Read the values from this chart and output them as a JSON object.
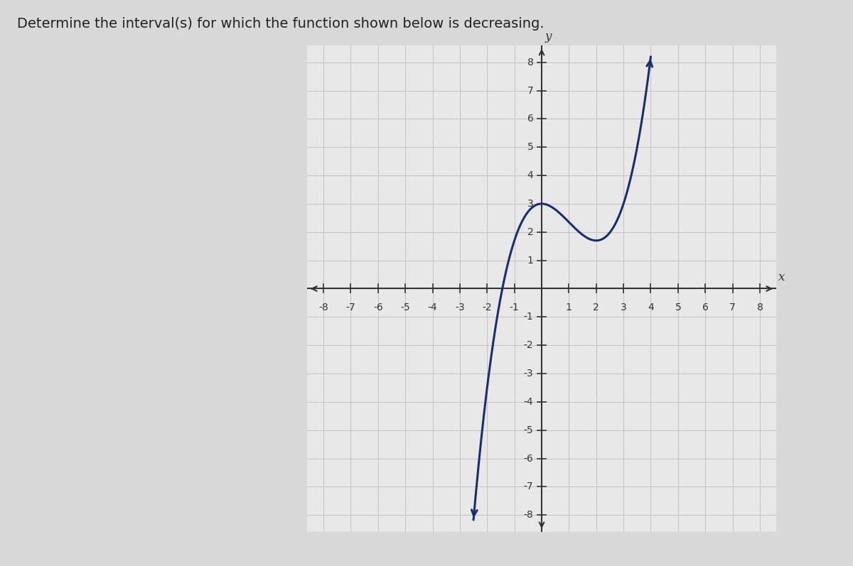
{
  "title": "Determine the interval(s) for which the function shown below is decreasing.",
  "title_fontsize": 14,
  "title_color": "#222222",
  "xlim": [
    -8.6,
    8.6
  ],
  "ylim": [
    -8.6,
    8.6
  ],
  "xticks": [
    -8,
    -7,
    -6,
    -5,
    -4,
    -3,
    -2,
    -1,
    1,
    2,
    3,
    4,
    5,
    6,
    7,
    8
  ],
  "yticks": [
    -8,
    -7,
    -6,
    -5,
    -4,
    -3,
    -2,
    -1,
    1,
    2,
    3,
    4,
    5,
    6,
    7,
    8
  ],
  "xlabel": "x",
  "ylabel": "y",
  "curve_color": "#1a2e6e",
  "curve_linewidth": 2.2,
  "background_color": "#d8d8d8",
  "plot_bg_color": "#e8e8e8",
  "grid_color": "#bbbbbb",
  "grid_linewidth": 0.6,
  "axis_color": "#333333",
  "tick_fontsize": 10,
  "box_bg": "#e0e0e0",
  "a": 0.325,
  "b": -0.975,
  "c": 0,
  "d": 3
}
